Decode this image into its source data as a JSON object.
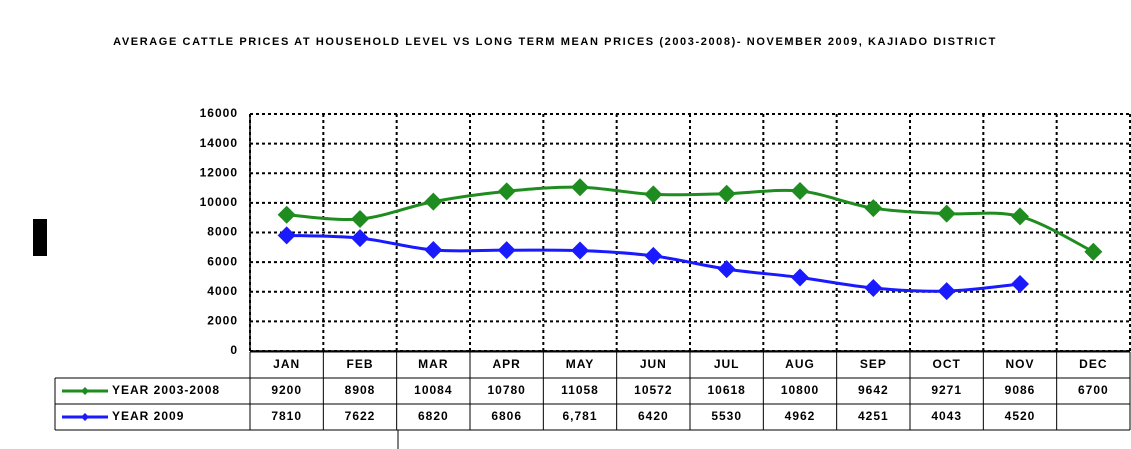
{
  "chart_data": {
    "type": "line",
    "title": "AVERAGE CATTLE PRICES AT HOUSEHOLD LEVEL VS LONG TERM MEAN PRICES (2003-2008)- NOVEMBER 2009, KAJIADO DISTRICT",
    "categories": [
      "JAN",
      "FEB",
      "MAR",
      "APR",
      "MAY",
      "JUN",
      "JUL",
      "AUG",
      "SEP",
      "OCT",
      "NOV",
      "DEC"
    ],
    "series": [
      {
        "name": "YEAR 2003-2008",
        "color": "#1e8c1e",
        "values": [
          9200,
          8908,
          10084,
          10780,
          11058,
          10572,
          10618,
          10800,
          9642,
          9271,
          9086,
          6700
        ]
      },
      {
        "name": "YEAR 2009",
        "color": "#1a1aff",
        "values": [
          7810,
          7622,
          6820,
          6806,
          6781,
          6420,
          5530,
          4962,
          4251,
          4043,
          4520,
          null
        ],
        "value_labels": [
          "7810",
          "7622",
          "6820",
          "6806",
          "6,781",
          "6420",
          "5530",
          "4962",
          "4251",
          "4043",
          "4520",
          null
        ]
      }
    ],
    "ylim": [
      0,
      16000
    ],
    "yticks": [
      0,
      2000,
      4000,
      6000,
      8000,
      10000,
      12000,
      14000,
      16000
    ],
    "grid": true
  }
}
